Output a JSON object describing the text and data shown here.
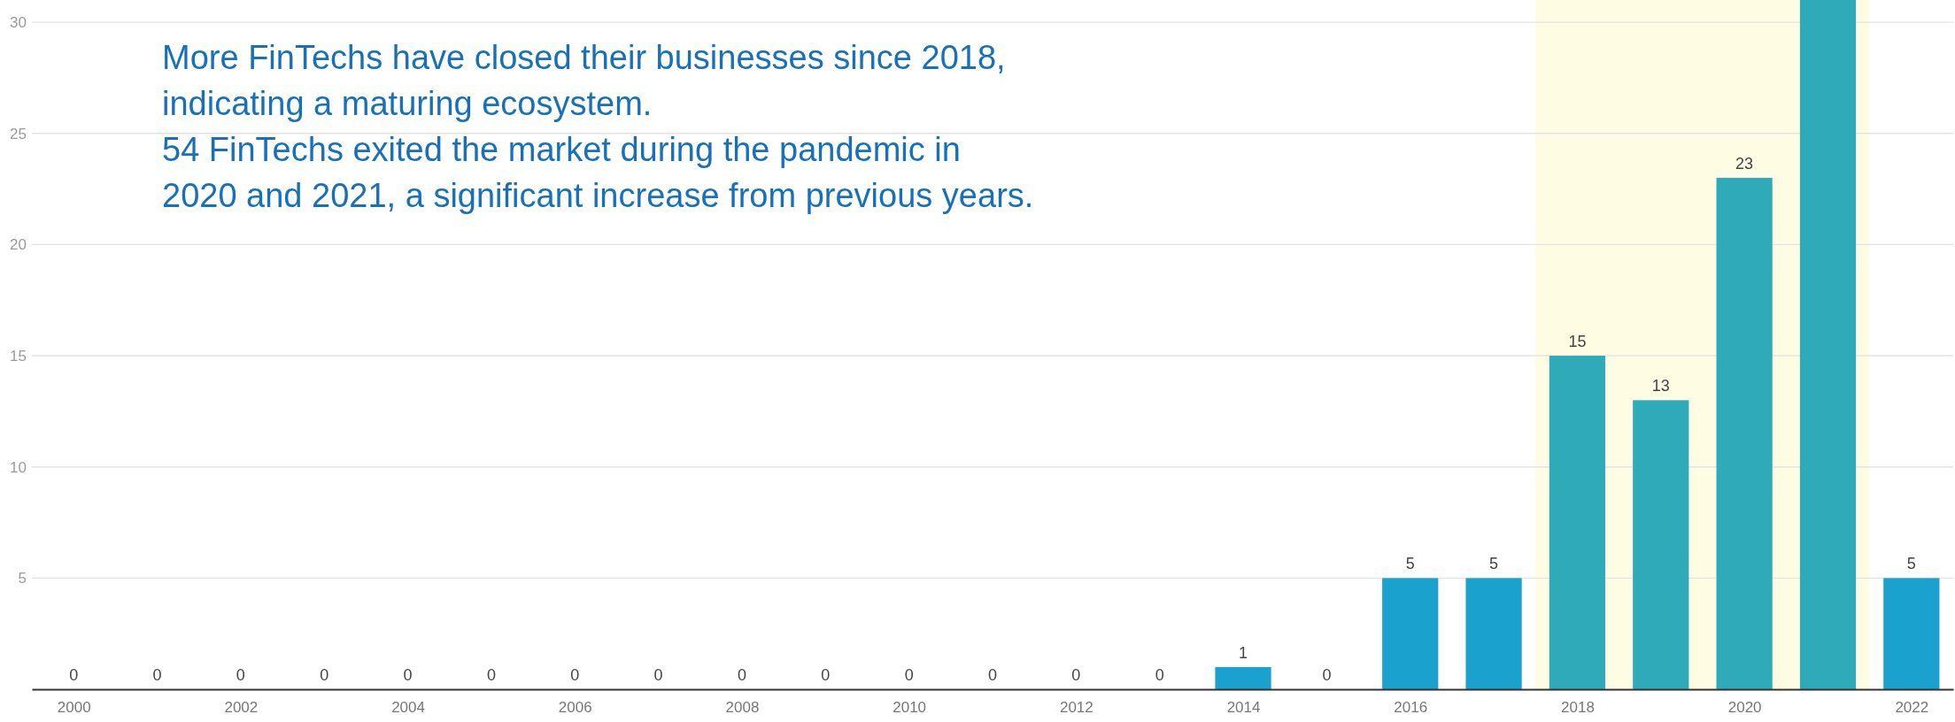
{
  "chart_data": {
    "type": "bar",
    "x": [
      2000,
      2001,
      2002,
      2003,
      2004,
      2005,
      2006,
      2007,
      2008,
      2009,
      2010,
      2011,
      2012,
      2013,
      2014,
      2015,
      2016,
      2017,
      2018,
      2019,
      2020,
      2021,
      2022
    ],
    "values": [
      0,
      0,
      0,
      0,
      0,
      0,
      0,
      0,
      0,
      0,
      0,
      0,
      0,
      0,
      1,
      0,
      5,
      5,
      15,
      13,
      23,
      31,
      5
    ],
    "colors": [
      "#1aa1cd",
      "#1aa1cd",
      "#1aa1cd",
      "#1aa1cd",
      "#1aa1cd",
      "#1aa1cd",
      "#1aa1cd",
      "#1aa1cd",
      "#1aa1cd",
      "#1aa1cd",
      "#1aa1cd",
      "#1aa1cd",
      "#1aa1cd",
      "#1aa1cd",
      "#1aa1cd",
      "#1aa1cd",
      "#1aa1cd",
      "#1aa1cd",
      "#2eaab8",
      "#2eaab8",
      "#2eaab8",
      "#2eaab8",
      "#1aa1cd"
    ],
    "value_labels": [
      "0",
      "0",
      "0",
      "0",
      "0",
      "0",
      "0",
      "0",
      "0",
      "0",
      "0",
      "0",
      "0",
      "0",
      "1",
      "0",
      "5",
      "5",
      "15",
      "13",
      "23",
      null,
      "5"
    ],
    "xlim": [
      1999.5,
      2022.5
    ],
    "xticks": [
      2000,
      2002,
      2004,
      2006,
      2008,
      2010,
      2012,
      2014,
      2016,
      2018,
      2020,
      2022
    ],
    "ylim": [
      0,
      31
    ],
    "yticks": [
      5,
      10,
      15,
      20,
      25,
      30
    ],
    "grid": "y",
    "bands": [
      {
        "axis": "x",
        "from": 2017.5,
        "to": 2021.5,
        "color": "#fefde4"
      }
    ],
    "annotations": [
      "More FinTechs have closed their businesses since 2018,",
      "indicating a maturing ecosystem.",
      "54 FinTechs exited the market during the pandemic in",
      "2020 and 2021, a significant increase from previous years."
    ]
  }
}
